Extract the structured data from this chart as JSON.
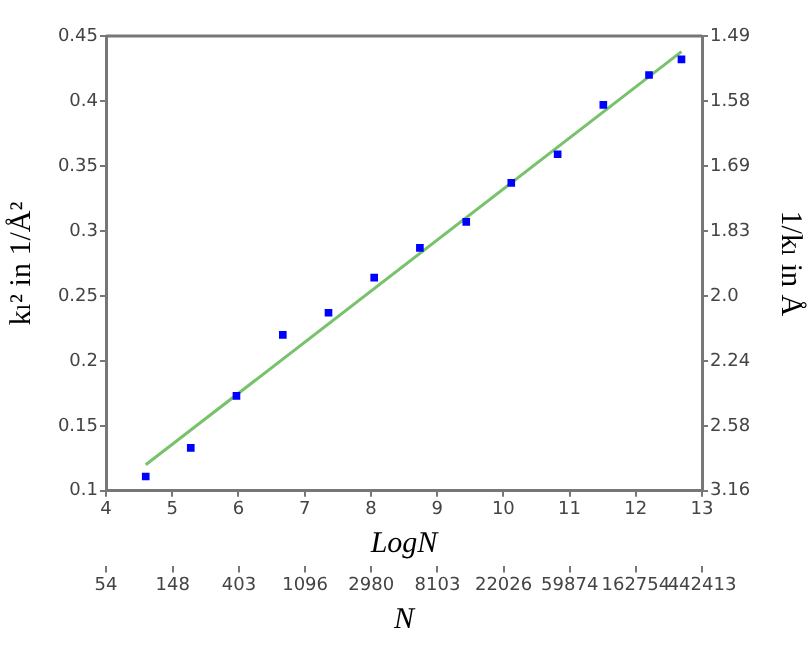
{
  "chart_data": {
    "type": "scatter",
    "xlabel": "LogN",
    "x2label": "N",
    "ylabel": "kₗ² in 1/Å²",
    "y2label": "1/kₗ in Å",
    "xlim": [
      4,
      13
    ],
    "xticks": [
      4,
      5,
      6,
      7,
      8,
      9,
      10,
      11,
      12,
      13
    ],
    "x2lim": [
      54,
      442413
    ],
    "x2ticks": [
      54,
      148,
      403,
      1096,
      2980,
      8103,
      22026,
      59874,
      162754,
      442413
    ],
    "log": "x2",
    "ylim": [
      0.1,
      0.45
    ],
    "yticks": [
      0.1,
      0.15,
      0.2,
      0.25,
      0.3,
      0.35,
      0.4,
      0.45
    ],
    "y2_categories": [
      "1.49",
      "1.58",
      "1.69",
      "1.83",
      "2.0",
      "2.24",
      "2.58",
      "3.16"
    ],
    "grid": false,
    "legend": false,
    "series": [
      {
        "type": "scatter",
        "color": "#0000ff",
        "marker": "square",
        "x": [
          4.6,
          5.28,
          5.97,
          6.67,
          7.36,
          8.05,
          8.74,
          9.44,
          10.12,
          10.82,
          11.51,
          12.2,
          12.69
        ],
        "values": [
          0.111,
          0.133,
          0.173,
          0.22,
          0.237,
          0.264,
          0.287,
          0.307,
          0.337,
          0.359,
          0.397,
          0.42,
          0.432
        ]
      },
      {
        "type": "line",
        "color": "#77c26b",
        "marker": "none",
        "line_style": "solid",
        "x": [
          4.6,
          12.69
        ],
        "values": [
          0.12,
          0.438
        ]
      }
    ]
  }
}
